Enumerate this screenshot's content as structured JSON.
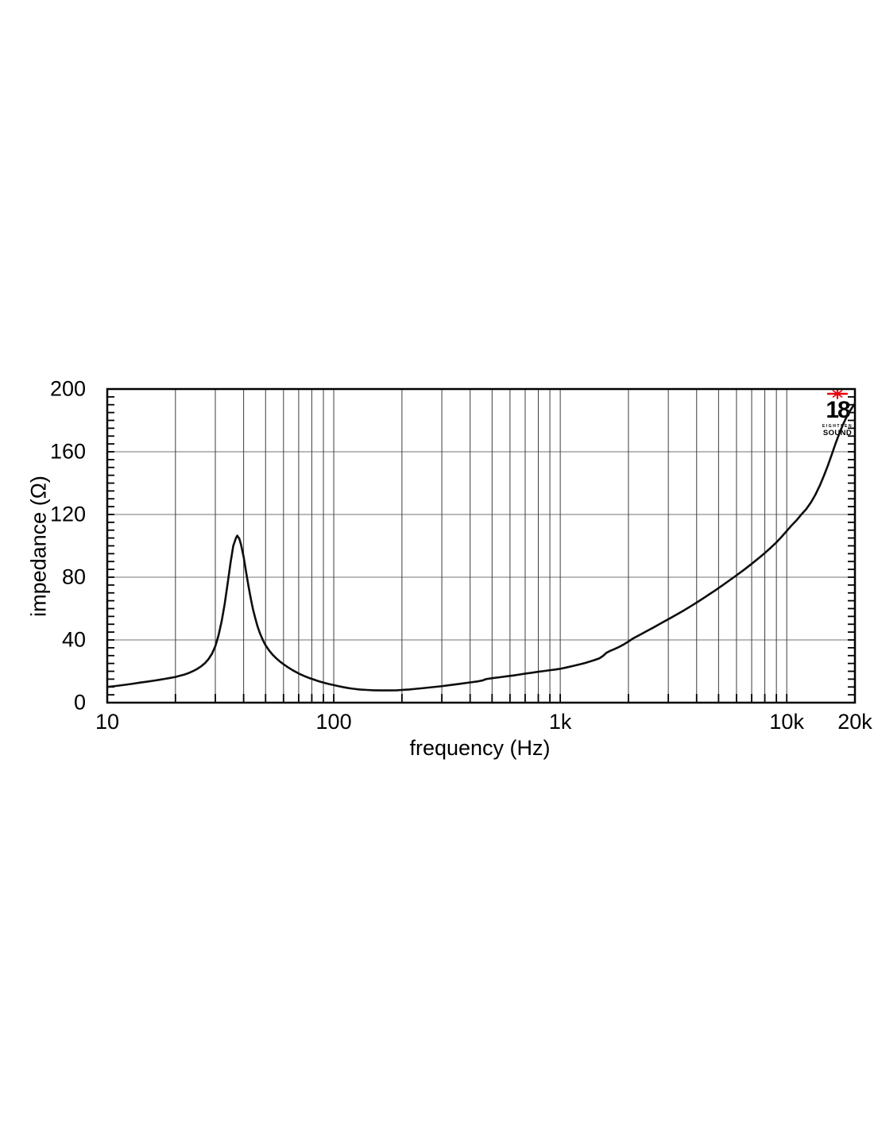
{
  "chart_data": {
    "type": "line",
    "title": "",
    "xlabel": "frequency (Hz)",
    "ylabel": "impedance (Ω)",
    "x_scale": "log",
    "xlim": [
      10,
      20000
    ],
    "ylim": [
      0,
      200
    ],
    "grid": true,
    "legend": "none",
    "x_major_ticks": [
      {
        "value": 10,
        "label": "10"
      },
      {
        "value": 100,
        "label": "100"
      },
      {
        "value": 1000,
        "label": "1k"
      },
      {
        "value": 10000,
        "label": "10k"
      },
      {
        "value": 20000,
        "label": "20k"
      }
    ],
    "x_grid_lines": [
      20,
      30,
      40,
      50,
      60,
      70,
      80,
      90,
      100,
      200,
      300,
      400,
      500,
      600,
      700,
      800,
      900,
      1000,
      2000,
      3000,
      4000,
      5000,
      6000,
      7000,
      8000,
      9000,
      10000
    ],
    "y_major_ticks": [
      {
        "value": 0,
        "label": "0"
      },
      {
        "value": 40,
        "label": "40"
      },
      {
        "value": 80,
        "label": "80"
      },
      {
        "value": 120,
        "label": "120"
      },
      {
        "value": 160,
        "label": "160"
      },
      {
        "value": 200,
        "label": "200"
      }
    ],
    "y_grid_lines": [
      40,
      80,
      120,
      160
    ],
    "y_minor_tick_step": 5,
    "series": [
      {
        "name": "impedance",
        "color": "#0e0e0e",
        "points": [
          [
            10,
            10
          ],
          [
            11,
            10.7
          ],
          [
            12,
            11.4
          ],
          [
            13,
            12.1
          ],
          [
            14,
            12.8
          ],
          [
            15,
            13.4
          ],
          [
            16,
            14
          ],
          [
            17,
            14.6
          ],
          [
            18,
            15.2
          ],
          [
            19,
            15.8
          ],
          [
            20,
            16.4
          ],
          [
            21,
            17.2
          ],
          [
            22,
            18
          ],
          [
            23,
            19
          ],
          [
            24,
            20.2
          ],
          [
            25,
            21.6
          ],
          [
            26,
            23.2
          ],
          [
            27,
            25.2
          ],
          [
            28,
            27.8
          ],
          [
            29,
            31.2
          ],
          [
            30,
            36
          ],
          [
            31,
            43
          ],
          [
            32,
            52
          ],
          [
            33,
            63
          ],
          [
            34,
            76
          ],
          [
            35,
            89
          ],
          [
            36,
            100
          ],
          [
            37,
            105
          ],
          [
            37.5,
            106.5
          ],
          [
            38.3,
            104.5
          ],
          [
            39,
            100.5
          ],
          [
            40,
            93
          ],
          [
            41,
            83.5
          ],
          [
            42,
            74.5
          ],
          [
            43,
            66.5
          ],
          [
            44,
            59.5
          ],
          [
            45,
            54
          ],
          [
            46,
            49
          ],
          [
            47,
            45
          ],
          [
            48,
            41.8
          ],
          [
            49,
            39
          ],
          [
            50,
            36.6
          ],
          [
            52,
            33
          ],
          [
            54,
            30.2
          ],
          [
            56,
            28
          ],
          [
            58,
            26.1
          ],
          [
            60,
            24.5
          ],
          [
            63,
            22.4
          ],
          [
            66,
            20.6
          ],
          [
            70,
            18.6
          ],
          [
            74,
            17
          ],
          [
            78,
            15.7
          ],
          [
            82,
            14.6
          ],
          [
            86,
            13.6
          ],
          [
            90,
            12.8
          ],
          [
            95,
            11.9
          ],
          [
            100,
            11.2
          ],
          [
            105,
            10.5
          ],
          [
            110,
            9.9
          ],
          [
            115,
            9.4
          ],
          [
            120,
            9
          ],
          [
            130,
            8.4
          ],
          [
            140,
            8.1
          ],
          [
            150,
            7.9
          ],
          [
            160,
            7.8
          ],
          [
            175,
            7.8
          ],
          [
            190,
            7.9
          ],
          [
            200,
            8.1
          ],
          [
            215,
            8.4
          ],
          [
            230,
            8.8
          ],
          [
            250,
            9.3
          ],
          [
            270,
            9.8
          ],
          [
            300,
            10.5
          ],
          [
            330,
            11.3
          ],
          [
            360,
            12
          ],
          [
            400,
            12.9
          ],
          [
            430,
            13.5
          ],
          [
            455,
            14.2
          ],
          [
            470,
            15
          ],
          [
            500,
            15.6
          ],
          [
            540,
            16.2
          ],
          [
            580,
            16.8
          ],
          [
            620,
            17.3
          ],
          [
            660,
            17.9
          ],
          [
            700,
            18.5
          ],
          [
            750,
            19.1
          ],
          [
            800,
            19.7
          ],
          [
            850,
            20.2
          ],
          [
            900,
            20.7
          ],
          [
            950,
            21.1
          ],
          [
            1000,
            21.6
          ],
          [
            1070,
            22.5
          ],
          [
            1140,
            23.4
          ],
          [
            1210,
            24.3
          ],
          [
            1280,
            25.2
          ],
          [
            1350,
            26.2
          ],
          [
            1420,
            27.2
          ],
          [
            1490,
            28.3
          ],
          [
            1545,
            29.8
          ],
          [
            1600,
            31.8
          ],
          [
            1660,
            33
          ],
          [
            1730,
            34.1
          ],
          [
            1800,
            35.2
          ],
          [
            1900,
            37
          ],
          [
            2000,
            39
          ],
          [
            2100,
            41
          ],
          [
            2250,
            43.3
          ],
          [
            2400,
            45.5
          ],
          [
            2600,
            48.2
          ],
          [
            2800,
            50.8
          ],
          [
            3000,
            53.2
          ],
          [
            3250,
            56
          ],
          [
            3500,
            58.7
          ],
          [
            3800,
            61.8
          ],
          [
            4100,
            64.8
          ],
          [
            4400,
            67.7
          ],
          [
            4800,
            71.3
          ],
          [
            5200,
            74.8
          ],
          [
            5600,
            78.1
          ],
          [
            6000,
            81.2
          ],
          [
            6500,
            84.9
          ],
          [
            7000,
            88.5
          ],
          [
            7500,
            92
          ],
          [
            8000,
            95.4
          ],
          [
            8500,
            98.8
          ],
          [
            9000,
            102.2
          ],
          [
            9500,
            105.8
          ],
          [
            10000,
            109.5
          ],
          [
            10500,
            113
          ],
          [
            11000,
            116
          ],
          [
            11600,
            120
          ],
          [
            12200,
            123.5
          ],
          [
            12800,
            127.8
          ],
          [
            13400,
            132.8
          ],
          [
            14000,
            138.5
          ],
          [
            14600,
            144.8
          ],
          [
            15200,
            151.3
          ],
          [
            15800,
            158.2
          ],
          [
            16400,
            165
          ],
          [
            17000,
            171
          ],
          [
            17600,
            176.4
          ],
          [
            18200,
            181
          ],
          [
            18800,
            184.8
          ],
          [
            19400,
            188
          ],
          [
            20000,
            190.8
          ]
        ]
      }
    ]
  },
  "logo": {
    "number": "18",
    "line1": "EIGHTEEN",
    "line2": "SOUND",
    "star_color": "#e8000a"
  },
  "colors": {
    "background": "#ffffff",
    "axis_border": "#000000",
    "grid_vertical": "#3d3d3d",
    "grid_horizontal": "#8f8f8f",
    "tick": "#000000",
    "curve": "#0e0e0e",
    "text": "#000000"
  }
}
